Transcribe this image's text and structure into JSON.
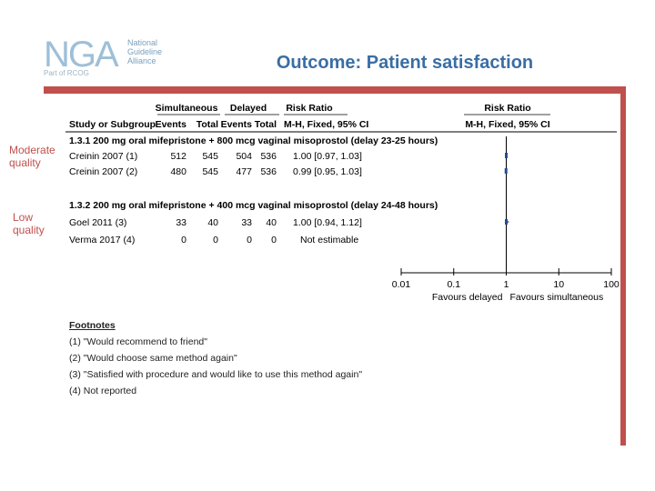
{
  "header": {
    "logo_letters": "NGA",
    "logo_words": [
      "National",
      "Guideline",
      "Alliance"
    ],
    "logo_sub": "Part of RCOG",
    "title": "Outcome: Patient satisfaction"
  },
  "quality_labels": {
    "moderate": [
      "Moderate",
      "quality"
    ],
    "low": [
      "Low",
      "quality"
    ]
  },
  "chart_data": {
    "type": "forest",
    "columns": {
      "group1": "Simultaneous",
      "group2": "Delayed",
      "rr": "Risk Ratio",
      "rr_plot": "Risk Ratio",
      "study": "Study or Subgroup",
      "events1": "Events",
      "total1": "Total",
      "events2": "Events",
      "total2": "Total",
      "method": "M-H, Fixed, 95% CI",
      "method_plot": "M-H, Fixed, 95% CI"
    },
    "subgroups": [
      {
        "title": "1.3.1 200 mg oral mifepristone + 800 mcg vaginal misoprostol (delay 23-25 hours)",
        "studies": [
          {
            "study": "Creinin 2007 (1)",
            "events1": "512",
            "total1": "545",
            "events2": "504",
            "total2": "536",
            "rr_text": "1.00 [0.97, 1.03]",
            "rr": 1.0,
            "lo": 0.97,
            "hi": 1.03
          },
          {
            "study": "Creinin 2007 (2)",
            "events1": "480",
            "total1": "545",
            "events2": "477",
            "total2": "536",
            "rr_text": "0.99 [0.95, 1.03]",
            "rr": 0.99,
            "lo": 0.95,
            "hi": 1.03
          }
        ]
      },
      {
        "title": "1.3.2 200 mg oral mifepristone + 400 mcg vaginal misoprostol (delay 24-48 hours)",
        "studies": [
          {
            "study": "Goel 2011 (3)",
            "events1": "33",
            "total1": "40",
            "events2": "33",
            "total2": "40",
            "rr_text": "1.00 [0.94, 1.12]",
            "rr": 1.0,
            "lo": 0.94,
            "hi": 1.12
          },
          {
            "study": "Verma 2017 (4)",
            "events1": "0",
            "total1": "0",
            "events2": "0",
            "total2": "0",
            "rr_text": "Not estimable",
            "rr": null,
            "lo": null,
            "hi": null
          }
        ]
      }
    ],
    "x_axis": {
      "scale": "log",
      "range": [
        0.01,
        100
      ],
      "ticks": [
        0.01,
        0.1,
        1,
        10,
        100
      ],
      "tick_labels": [
        "0.01",
        "0.1",
        "1",
        "10",
        "100"
      ],
      "favours_left": "Favours delayed",
      "favours_right": "Favours simultaneous"
    }
  },
  "footnotes": {
    "heading": "Footnotes",
    "items": [
      "(1) \"Would recommend to friend\"",
      "(2) \"Would choose same method again\"",
      "(3) \"Satisfied with procedure and would like to use this method again\"",
      "(4) Not reported"
    ]
  }
}
